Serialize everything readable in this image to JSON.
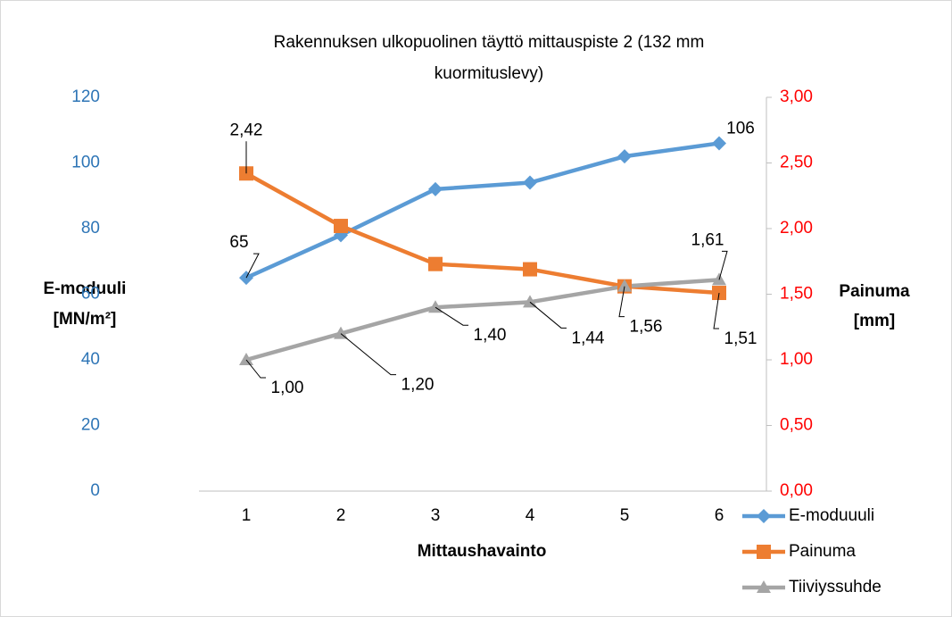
{
  "chart_data": {
    "type": "line",
    "title": [
      "Rakennuksen ulkopuolinen täyttö mittauspiste 2 (132 mm",
      "kuormituslevy)"
    ],
    "x_label": "Mittaushavainto",
    "y_label": [
      "E-moduuli",
      "[MN/m²]"
    ],
    "y2_label": [
      "Painuma",
      "[mm]"
    ],
    "categories": [
      "1",
      "2",
      "3",
      "4",
      "5",
      "6"
    ],
    "ylim": [
      0,
      120
    ],
    "yticks": [
      0,
      20,
      40,
      60,
      80,
      100,
      120
    ],
    "y2lim": [
      0,
      3
    ],
    "y2ticks": [
      {
        "value": 0,
        "label": "0,00"
      },
      {
        "value": 0.5,
        "label": "0,50"
      },
      {
        "value": 1,
        "label": "1,00"
      },
      {
        "value": 1.5,
        "label": "1,50"
      },
      {
        "value": 2,
        "label": "2,00"
      },
      {
        "value": 2.5,
        "label": "2,50"
      },
      {
        "value": 3,
        "label": "3,00"
      }
    ],
    "grid": false,
    "legend": "right",
    "series": [
      {
        "name": "E-moduuuli",
        "color": "#5b9bd5",
        "marker": "diamond",
        "values": [
          65,
          78,
          92,
          94,
          102,
          106
        ],
        "value_labels": [
          "65",
          null,
          null,
          null,
          null,
          "106"
        ]
      },
      {
        "name": "Painuma",
        "color": "#ed7d31",
        "marker": "square",
        "axis": "y2",
        "values": [
          2.42,
          2.02,
          1.73,
          1.69,
          1.56,
          1.51
        ],
        "value_labels": [
          "2,42",
          null,
          null,
          null,
          null,
          "1,51"
        ]
      },
      {
        "name": "Tiiviyssuhde",
        "color": "#a5a5a5",
        "marker": "triangle",
        "axis": "y2",
        "values": [
          1.0,
          1.2,
          1.4,
          1.44,
          1.56,
          1.61
        ],
        "value_labels": [
          "1,00",
          "1,20",
          "1,40",
          "1,44",
          "1,56",
          "1,61"
        ]
      }
    ]
  }
}
